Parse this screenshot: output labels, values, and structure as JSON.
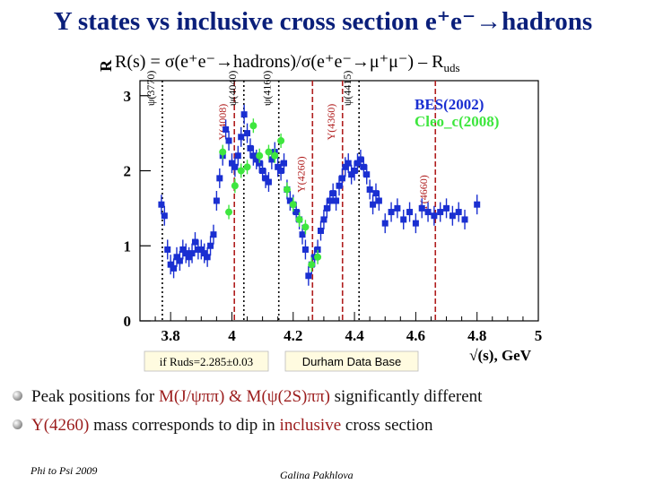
{
  "slide": {
    "title": "Y states vs inclusive cross section e⁺e⁻→hadrons",
    "subtitle": "R(s) = σ(e⁺e⁻→hadrons)/σ(e⁺e⁻→μ⁺μ⁻) – R",
    "subtitle_sub": "uds",
    "bullet1_a": "Peak positions for ",
    "bullet1_hl": "M(J/ψππ) & M(ψ(2S)ππ)",
    "bullet1_b": " significantly different",
    "bullet2_hl1": "Y(4260)",
    "bullet2_a": " mass corresponds to dip in ",
    "bullet2_hl2": "inclusive",
    "bullet2_b": "  cross section",
    "footer_left": "Phi to Psi 2009",
    "footer_center": "Galina Pakhlova"
  },
  "colors": {
    "title": "#0a1f7a",
    "bes": "#1a2fd1",
    "cleo": "#3ee63e",
    "resonance_red": "#b01e1e",
    "highlight": "#9b1c1c"
  },
  "chart_data": {
    "type": "scatter",
    "title": "R(s) = σ(e⁺e⁻→hadrons)/σ(e⁺e⁻→μ⁺μ⁻) – Ruds",
    "ylabel": "R",
    "xlabel": "√(s), GeV",
    "xlim": [
      3.7,
      5.0
    ],
    "ylim": [
      0,
      3.2
    ],
    "xticks": [
      3.8,
      4.0,
      4.2,
      4.4,
      4.6,
      4.8,
      5.0
    ],
    "xtick_labels": [
      "3.8",
      "4",
      "4.2",
      "4.4",
      "4.6",
      "4.8",
      "5"
    ],
    "yticks": [
      0,
      1,
      2,
      3
    ],
    "ytick_labels": [
      "0",
      "1",
      "2",
      "3"
    ],
    "annotation_ruds": "if Ruds=2.285±0.03",
    "annotation_source": "Durham Data Base",
    "legend": [
      {
        "name": "BES(2002)",
        "color": "#1a2fd1"
      },
      {
        "name": "Cleo_c(2008)",
        "color": "#3ee63e"
      }
    ],
    "resonances": [
      {
        "name": "ψ(3770)",
        "x": 3.773,
        "style": "dotted",
        "color": "#000000",
        "label_y": 3.1
      },
      {
        "name": "Y(4008)",
        "x": 4.008,
        "style": "dashed",
        "color": "#b01e1e",
        "label_y": 2.65
      },
      {
        "name": "ψ(4040)",
        "x": 4.039,
        "style": "dotted",
        "color": "#000000",
        "label_y": 3.1
      },
      {
        "name": "ψ(4160)",
        "x": 4.153,
        "style": "dotted",
        "color": "#000000",
        "label_y": 3.1
      },
      {
        "name": "Y(4260)",
        "x": 4.263,
        "style": "dashed",
        "color": "#b01e1e",
        "label_y": 1.95
      },
      {
        "name": "Y(4360)",
        "x": 4.361,
        "style": "dashed",
        "color": "#b01e1e",
        "label_y": 2.65
      },
      {
        "name": "ψ(4415)",
        "x": 4.415,
        "style": "dotted",
        "color": "#000000",
        "label_y": 3.1
      },
      {
        "name": "Y(4660)",
        "x": 4.664,
        "style": "dashed",
        "color": "#b01e1e",
        "label_y": 1.7
      }
    ],
    "series": [
      {
        "name": "BES(2002)",
        "color": "#1a2fd1",
        "marker": "square",
        "x": [
          3.77,
          3.78,
          3.79,
          3.8,
          3.81,
          3.82,
          3.83,
          3.84,
          3.85,
          3.86,
          3.87,
          3.88,
          3.89,
          3.9,
          3.91,
          3.92,
          3.93,
          3.94,
          3.95,
          3.96,
          3.97,
          3.98,
          3.99,
          4.0,
          4.01,
          4.02,
          4.03,
          4.04,
          4.05,
          4.06,
          4.07,
          4.08,
          4.09,
          4.1,
          4.11,
          4.12,
          4.13,
          4.14,
          4.15,
          4.16,
          4.17,
          4.18,
          4.19,
          4.2,
          4.21,
          4.22,
          4.23,
          4.24,
          4.25,
          4.26,
          4.27,
          4.28,
          4.29,
          4.3,
          4.31,
          4.32,
          4.33,
          4.34,
          4.35,
          4.36,
          4.37,
          4.38,
          4.39,
          4.4,
          4.41,
          4.42,
          4.43,
          4.44,
          4.45,
          4.46,
          4.47,
          4.48,
          4.5,
          4.52,
          4.54,
          4.56,
          4.58,
          4.6,
          4.62,
          4.64,
          4.66,
          4.68,
          4.7,
          4.72,
          4.74,
          4.76,
          4.8
        ],
        "y": [
          1.55,
          1.4,
          0.95,
          0.75,
          0.7,
          0.85,
          0.8,
          0.95,
          0.9,
          0.85,
          0.9,
          1.05,
          0.95,
          0.95,
          0.9,
          0.85,
          1.0,
          1.15,
          1.6,
          1.9,
          2.2,
          2.55,
          2.4,
          2.1,
          2.05,
          2.2,
          2.45,
          2.75,
          2.5,
          2.3,
          2.2,
          2.15,
          2.1,
          2.0,
          1.9,
          1.85,
          2.15,
          2.25,
          2.05,
          2.0,
          2.1,
          1.75,
          1.6,
          1.55,
          1.45,
          1.35,
          1.15,
          0.95,
          0.6,
          0.75,
          0.85,
          0.95,
          1.2,
          1.35,
          1.5,
          1.6,
          1.7,
          1.6,
          1.8,
          1.9,
          2.05,
          2.1,
          1.95,
          2.0,
          2.1,
          2.15,
          2.05,
          1.95,
          1.75,
          1.55,
          1.7,
          1.6,
          1.3,
          1.45,
          1.5,
          1.35,
          1.45,
          1.3,
          1.5,
          1.45,
          1.4,
          1.45,
          1.5,
          1.4,
          1.45,
          1.35,
          1.55
        ]
      },
      {
        "name": "Cleo_c(2008)",
        "color": "#3ee63e",
        "marker": "circle",
        "x": [
          3.97,
          3.99,
          4.01,
          4.03,
          4.05,
          4.07,
          4.09,
          4.12,
          4.14,
          4.16,
          4.18,
          4.2,
          4.22,
          4.24,
          4.26,
          4.28
        ],
        "y": [
          2.25,
          1.45,
          1.8,
          2.0,
          2.05,
          2.6,
          2.2,
          2.25,
          2.2,
          2.4,
          1.75,
          1.55,
          1.35,
          1.25,
          0.75,
          0.85
        ]
      }
    ]
  }
}
